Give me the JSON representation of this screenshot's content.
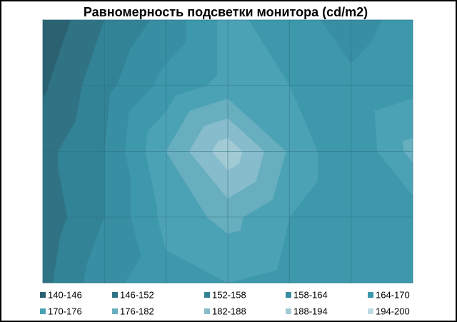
{
  "chart_data": {
    "type": "contour",
    "title": "Равномерность  подсветки монитора (cd/m2)",
    "z": [
      [
        141,
        152,
        160,
        172,
        166,
        162,
        166
      ],
      [
        145,
        156,
        166,
        172,
        170,
        165,
        168
      ],
      [
        150,
        158,
        176,
        192,
        175,
        164,
        178
      ],
      [
        148,
        158,
        172,
        178,
        170,
        164,
        166
      ],
      [
        150,
        162,
        168,
        170,
        168,
        166,
        166
      ]
    ],
    "levels": [
      140,
      146,
      152,
      158,
      164,
      170,
      176,
      182,
      188,
      194,
      200
    ],
    "series": [
      {
        "name": "140-146",
        "color": "#2b6272"
      },
      {
        "name": "146-152",
        "color": "#2f7385"
      },
      {
        "name": "152-158",
        "color": "#338396"
      },
      {
        "name": "158-164",
        "color": "#388ea3"
      },
      {
        "name": "164-170",
        "color": "#3d98ac"
      },
      {
        "name": "170-176",
        "color": "#4ca2b5"
      },
      {
        "name": "176-182",
        "color": "#67aebf"
      },
      {
        "name": "182-188",
        "color": "#86bccb"
      },
      {
        "name": "188-194",
        "color": "#a2cad5"
      },
      {
        "name": "194-200",
        "color": "#bddbe3"
      }
    ]
  }
}
